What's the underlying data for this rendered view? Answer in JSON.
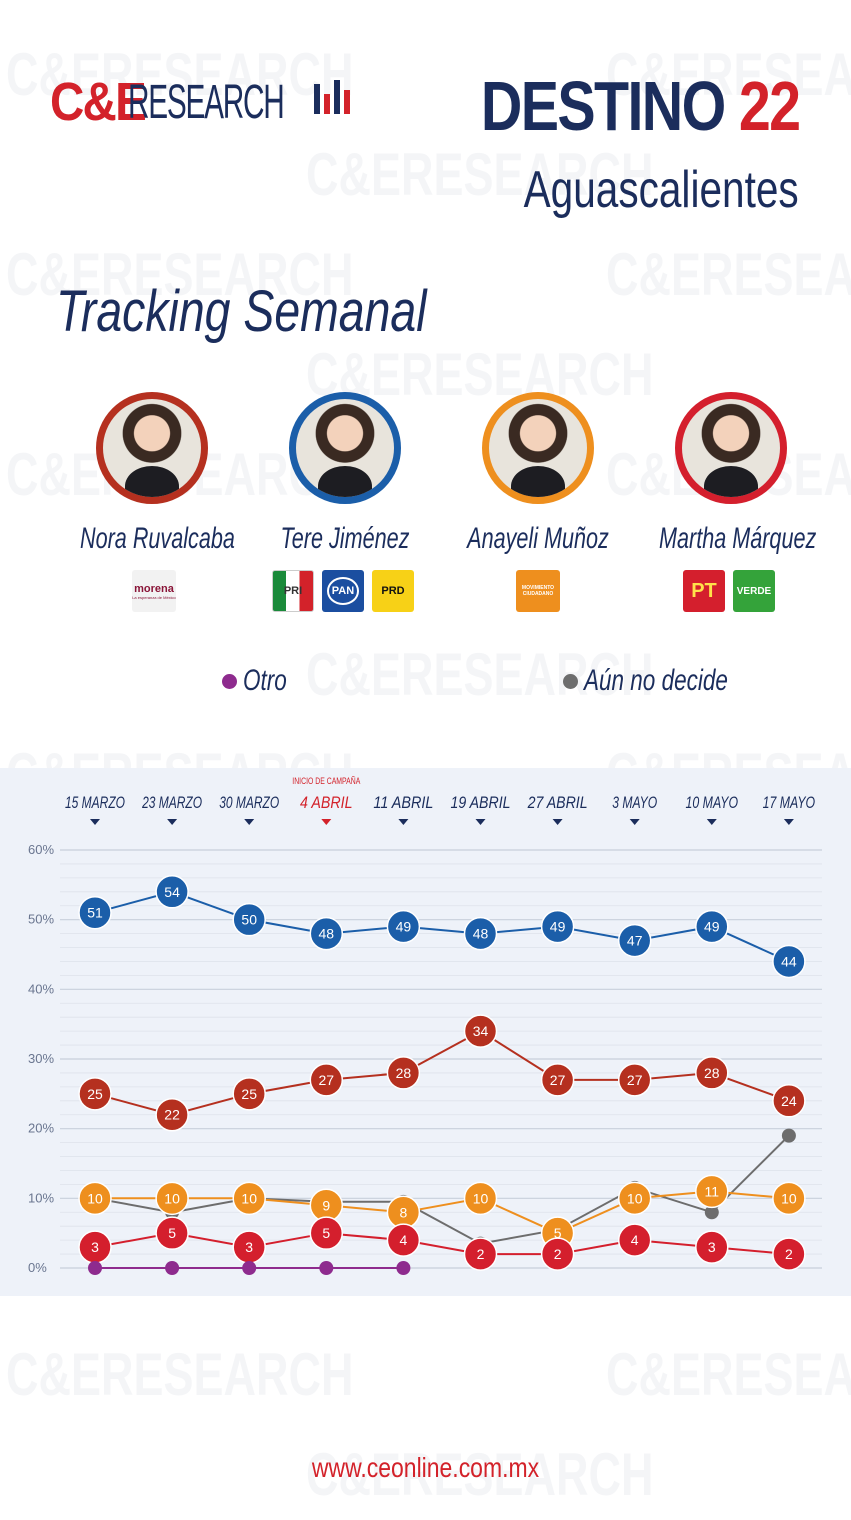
{
  "brand": {
    "logo_ce": "C&E",
    "logo_research": "RESEARCH",
    "watermark": "C&ERESEARCH",
    "colors": {
      "red": "#d3222a",
      "navy": "#1b2d5c"
    }
  },
  "header": {
    "title_word": "DESTINO",
    "title_number": "22",
    "subtitle": "Aguascalientes"
  },
  "section_title": "Tracking Semanal",
  "candidates": [
    {
      "name": "Nora Ruvalcaba",
      "color": "#b5301f",
      "parties": [
        {
          "label": "morena",
          "sub": "La esperanza de México",
          "icon": "morena-logo"
        }
      ]
    },
    {
      "name": "Tere Jiménez",
      "color": "#1b5ea9",
      "parties": [
        {
          "label": "PRI",
          "icon": "pri-logo"
        },
        {
          "label": "PAN",
          "icon": "pan-logo"
        },
        {
          "label": "PRD",
          "icon": "prd-logo"
        }
      ]
    },
    {
      "name": "Anayeli Muñoz",
      "color": "#ee8f1e",
      "parties": [
        {
          "label": "MOVIMIENTO CIUDADANO",
          "icon": "mc-logo"
        }
      ]
    },
    {
      "name": "Martha Márquez",
      "color": "#d41f2d",
      "parties": [
        {
          "label": "PT",
          "icon": "pt-logo"
        },
        {
          "label": "VERDE",
          "icon": "verde-logo"
        }
      ]
    }
  ],
  "legend": [
    {
      "label": "Otro",
      "color": "#8e2b8e"
    },
    {
      "label": "Aún no decide",
      "color": "#6d6d6d"
    }
  ],
  "footer": {
    "url": "www.ceonline.com.mx"
  },
  "chart_data": {
    "type": "line",
    "x": [
      "15 MARZO",
      "23 MARZO",
      "30 MARZO",
      "4 ABRIL",
      "11 ABRIL",
      "19 ABRIL",
      "27 ABRIL",
      "3 MAYO",
      "10 MAYO",
      "17 MAYO"
    ],
    "highlight": {
      "index": 3,
      "note": "INICIO DE CAMPAÑA",
      "color": "#d3222a"
    },
    "yticks": [
      "0%",
      "10%",
      "20%",
      "30%",
      "40%",
      "50%",
      "60%"
    ],
    "ylim": [
      0,
      60
    ],
    "series": [
      {
        "name": "Tere Jiménez",
        "color": "#1b5ea9",
        "labeled": true,
        "values": [
          51,
          54,
          50,
          48,
          49,
          48,
          49,
          47,
          49,
          44
        ]
      },
      {
        "name": "Nora Ruvalcaba",
        "color": "#b5301f",
        "labeled": true,
        "values": [
          25,
          22,
          25,
          27,
          28,
          34,
          27,
          27,
          28,
          24
        ]
      },
      {
        "name": "Aún no decide",
        "color": "#6d6d6d",
        "labeled": false,
        "values": [
          10,
          8,
          10,
          9.5,
          9.5,
          3.5,
          5.5,
          11.5,
          8,
          19
        ]
      },
      {
        "name": "Anayeli Muñoz",
        "color": "#ee8f1e",
        "labeled": true,
        "values": [
          10,
          10,
          10,
          9,
          8,
          10,
          5,
          10,
          11,
          10
        ]
      },
      {
        "name": "Martha Márquez",
        "color": "#d41f2d",
        "labeled": true,
        "values": [
          3,
          5,
          3,
          5,
          4,
          2,
          2,
          4,
          3,
          2
        ]
      },
      {
        "name": "Otro",
        "color": "#8e2b8e",
        "labeled": false,
        "values": [
          0,
          0,
          0,
          0,
          0,
          null,
          null,
          null,
          null,
          null
        ]
      }
    ]
  }
}
